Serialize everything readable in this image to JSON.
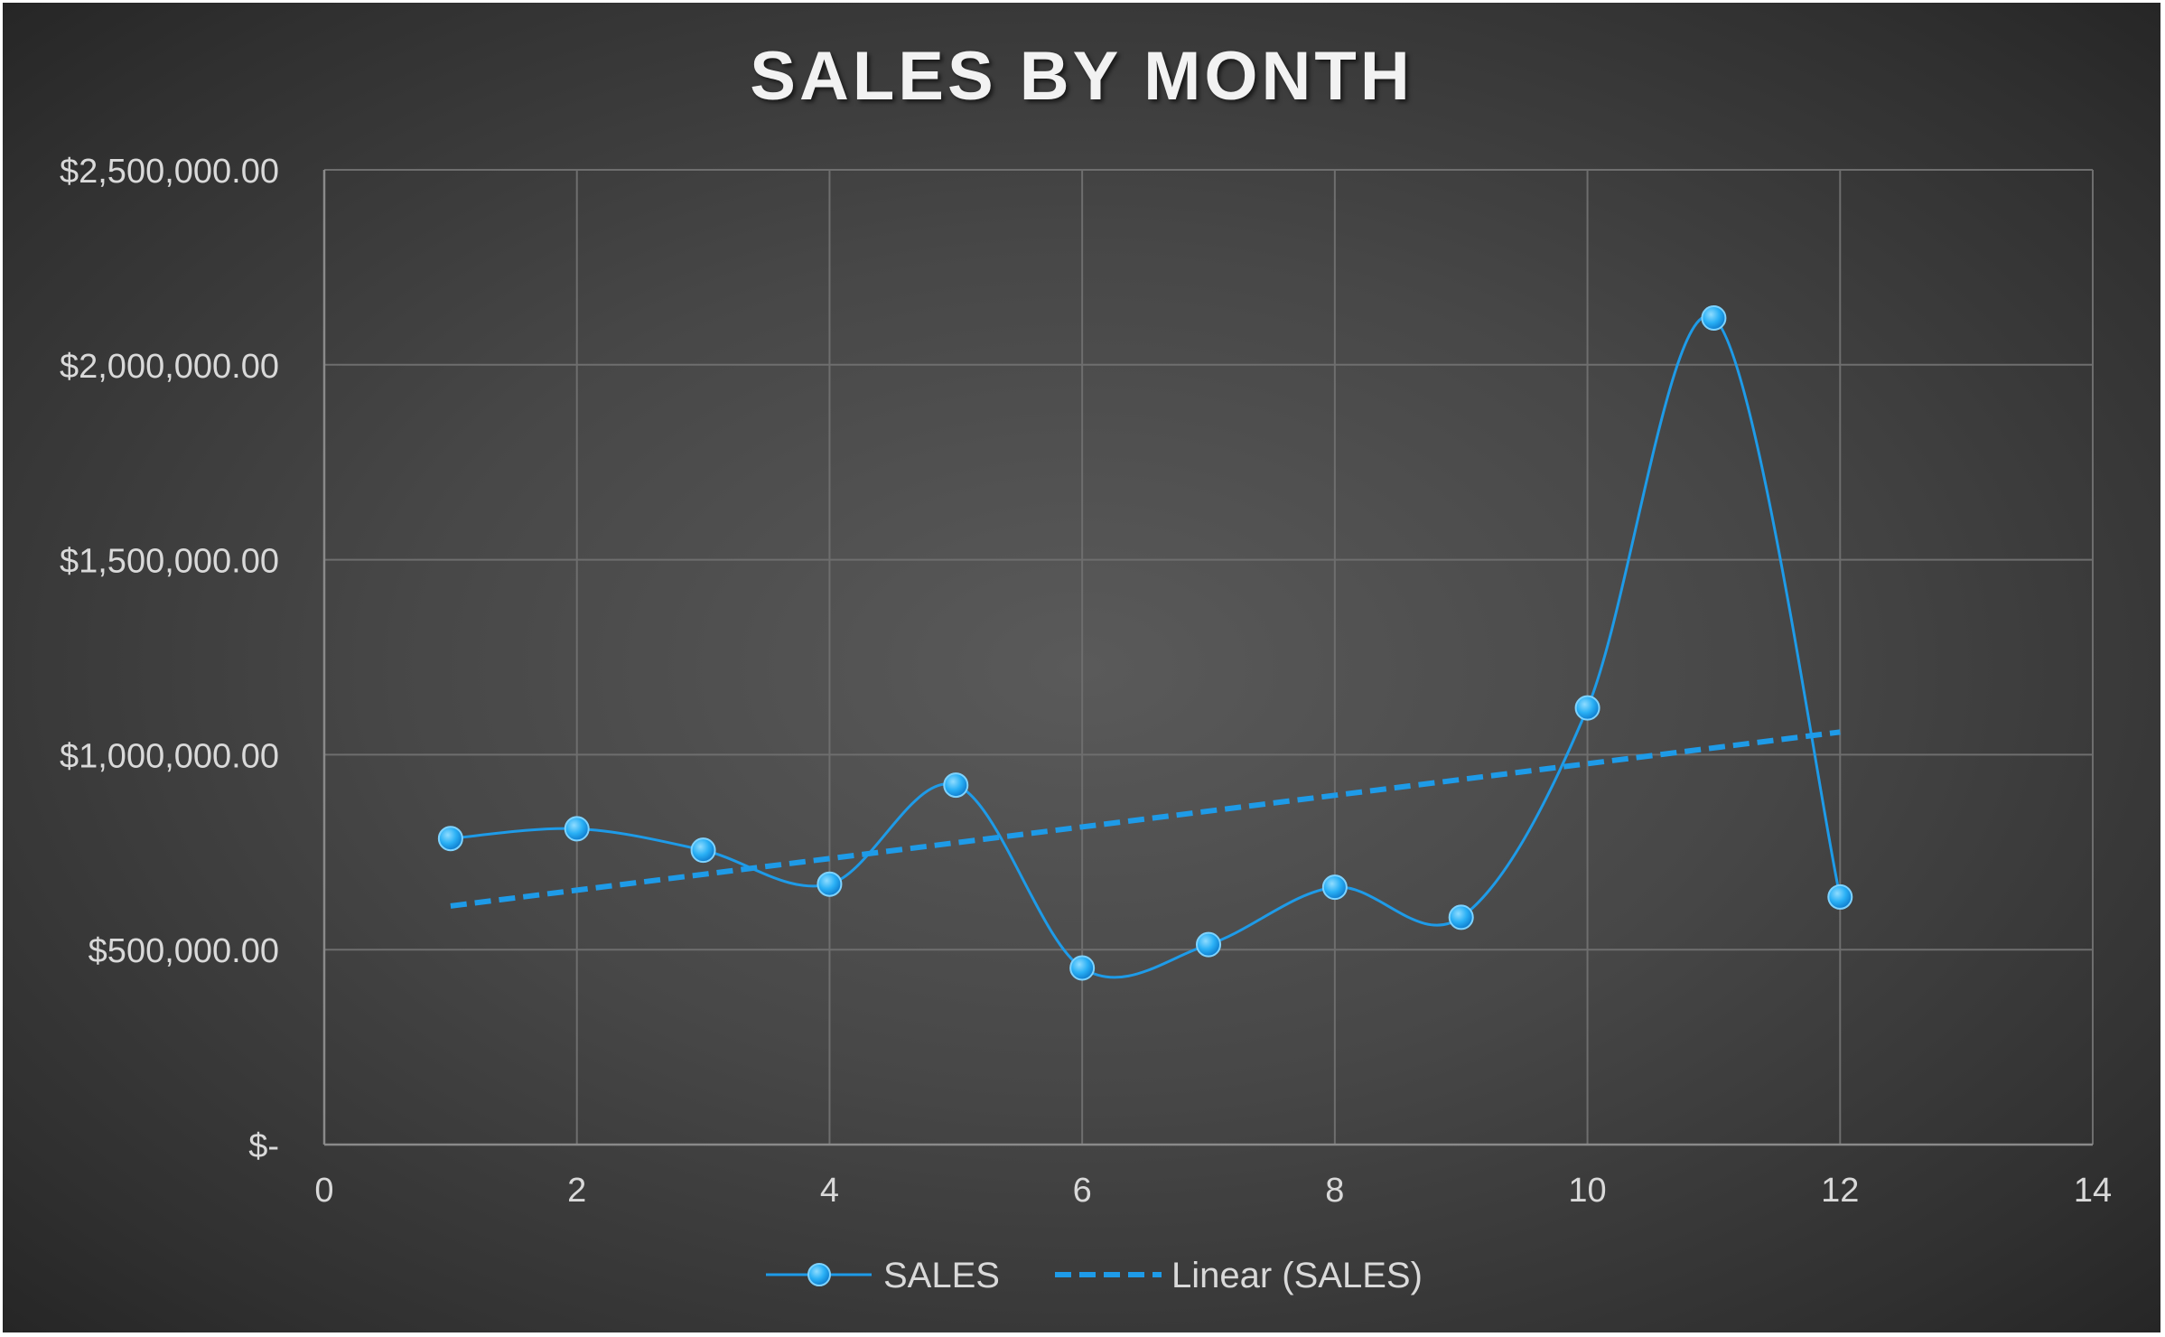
{
  "chart_data": {
    "type": "scatter",
    "title": "SALES BY MONTH",
    "x_ticks": [
      "0",
      "2",
      "4",
      "6",
      "8",
      "10",
      "12",
      "14"
    ],
    "y_ticks": [
      "$-",
      "$500,000.00",
      "$1,000,000.00",
      "$1,500,000.00",
      "$2,000,000.00",
      "$2,500,000.00"
    ],
    "xlim": [
      0,
      14
    ],
    "ylim": [
      0,
      2500000
    ],
    "grid": true,
    "legend_position": "bottom",
    "series": [
      {
        "name": "SALES",
        "style": "smooth line with markers",
        "color": "#1e9be8",
        "x": [
          1,
          2,
          3,
          4,
          5,
          6,
          7,
          8,
          9,
          10,
          11,
          12
        ],
        "y": [
          785000,
          810000,
          755000,
          668000,
          922000,
          453000,
          513000,
          660000,
          583000,
          1120000,
          2120000,
          635000
        ]
      },
      {
        "name": "Linear (SALES)",
        "style": "dashed trendline",
        "color": "#1e9be8",
        "x": [
          1,
          12
        ],
        "y": [
          612000,
          1058000
        ]
      }
    ]
  }
}
